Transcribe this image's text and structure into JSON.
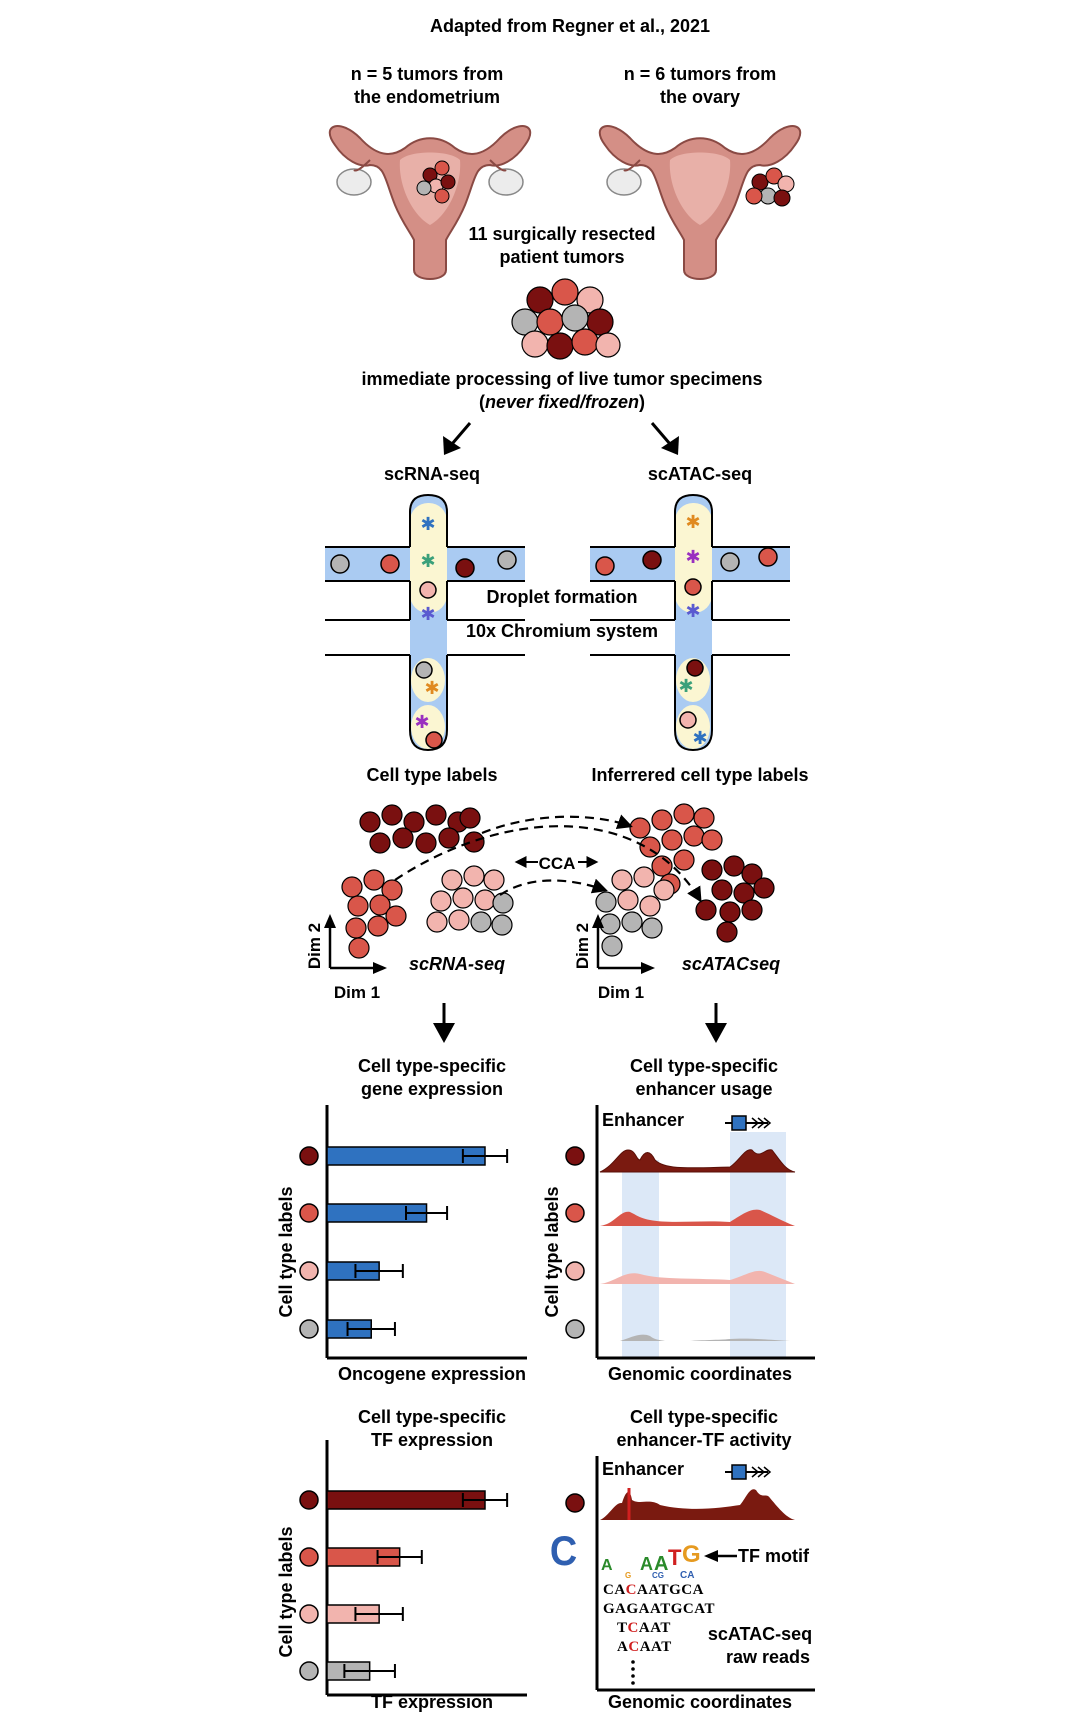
{
  "header": {
    "source": "Adapted from Regner et al., 2021"
  },
  "tumors": {
    "endometrium": [
      "n = 5 tumors from",
      "the endometrium"
    ],
    "ovary": [
      "n = 6 tumors from",
      "the ovary"
    ],
    "resected": [
      "11 surgically resected",
      "patient tumors"
    ]
  },
  "processing": {
    "line1": "immediate processing of live tumor specimens",
    "open_paren": "(",
    "italic": "never fixed/frozen",
    "close_paren": ")"
  },
  "assays": {
    "rna": "scRNA-seq",
    "atac": "scATAC-seq"
  },
  "chip": {
    "droplet": "Droplet formation",
    "system": "10x Chromium system"
  },
  "labels": {
    "rna": "Cell type labels",
    "atac": "Inferrered cell type labels"
  },
  "embedding": {
    "cca": "CCA",
    "dim1": "Dim 1",
    "dim2": "Dim 2",
    "rna_label": "scRNA-seq",
    "atac_label": "scATACseq"
  },
  "panel_gene": {
    "title": [
      "Cell type-specific",
      "gene expression"
    ],
    "xlabel": "Oncogene expression",
    "ylabel": "Cell type labels"
  },
  "panel_enh": {
    "title": [
      "Cell type-specific",
      "enhancer usage"
    ],
    "enhancer": "Enhancer",
    "xlabel": "Genomic coordinates",
    "ylabel": "Cell type labels"
  },
  "panel_tf": {
    "title": [
      "Cell type-specific",
      "TF expression"
    ],
    "xlabel": "TF expression",
    "ylabel": "Cell type labels"
  },
  "panel_tfact": {
    "title": [
      "Cell type-specific",
      "enhancer-TF activity"
    ],
    "enhancer": "Enhancer",
    "motif": "TF motif",
    "reads": [
      {
        "pre": "CA",
        "hl": "C",
        "post": "AATGCA"
      },
      {
        "pre": "GAGAATGCAT",
        "hl": "",
        "post": ""
      },
      {
        "pre": "T",
        "hl": "C",
        "post": "AAT"
      },
      {
        "pre": "A",
        "hl": "C",
        "post": "AAT"
      }
    ],
    "raw": [
      "scATAC-seq",
      "raw reads"
    ],
    "xlabel": "Genomic coordinates"
  },
  "colors": {
    "dark_red": "#7a1010",
    "red": "#d9564a",
    "pink": "#f2b4ae",
    "gray": "#b4b4b4",
    "blue": "#2f72c0",
    "chip_blue": "#aacbf2",
    "cream": "#fbf6d2",
    "uterus": "#d48f86"
  },
  "chart_data": [
    {
      "type": "bar",
      "orientation": "horizontal",
      "ylabel": "Cell type labels",
      "xlabel": "Oncogene expression",
      "categories": [
        "dark red cells",
        "red cells",
        "pink cells",
        "gray cells"
      ],
      "values": [
        1.0,
        0.63,
        0.33,
        0.28
      ],
      "errors": [
        0.14,
        0.13,
        0.15,
        0.15
      ]
    },
    {
      "type": "bar",
      "orientation": "horizontal",
      "ylabel": "Cell type labels",
      "xlabel": "TF expression",
      "categories": [
        "dark red cells",
        "red cells",
        "pink cells",
        "gray cells"
      ],
      "values": [
        1.0,
        0.46,
        0.33,
        0.27
      ],
      "errors": [
        0.14,
        0.14,
        0.15,
        0.16
      ]
    }
  ]
}
